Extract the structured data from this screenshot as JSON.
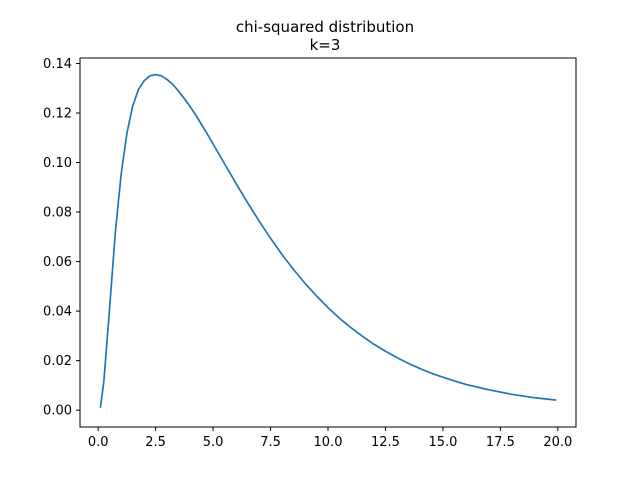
{
  "chart_data": {
    "type": "line",
    "title": "chi-squared distribution",
    "subtitle": "k=3",
    "xlabel": "",
    "ylabel": "",
    "xlim": [
      -0.79,
      20.79
    ],
    "ylim": [
      -0.0068,
      0.1422
    ],
    "grid": false,
    "x_ticks": [
      0.0,
      2.5,
      5.0,
      7.5,
      10.0,
      12.5,
      15.0,
      17.5,
      20.0
    ],
    "x_tick_labels": [
      "0.0",
      "2.5",
      "5.0",
      "7.5",
      "10.0",
      "12.5",
      "15.0",
      "17.5",
      "20.0"
    ],
    "y_ticks": [
      0.0,
      0.02,
      0.04,
      0.06,
      0.08,
      0.1,
      0.12,
      0.14
    ],
    "y_tick_labels": [
      "0.00",
      "0.02",
      "0.04",
      "0.06",
      "0.08",
      "0.10",
      "0.12",
      "0.14"
    ],
    "series": [
      {
        "color": "#1f77b4",
        "x": [
          0.1,
          0.25,
          0.5,
          0.75,
          1.0,
          1.25,
          1.5,
          1.75,
          2.0,
          2.25,
          2.5,
          2.75,
          3.0,
          3.25,
          3.5,
          3.75,
          4.0,
          4.25,
          4.5,
          4.75,
          5.0,
          5.5,
          6.0,
          6.5,
          7.0,
          7.5,
          8.0,
          8.5,
          9.0,
          9.5,
          10.0,
          10.5,
          11.0,
          11.5,
          12.0,
          12.5,
          13.0,
          13.5,
          14.0,
          14.5,
          15.0,
          15.5,
          16.0,
          16.5,
          17.0,
          17.5,
          18.0,
          18.5,
          19.0,
          19.5,
          19.9
        ],
        "y": [
          0.0012,
          0.0118,
          0.0415,
          0.0721,
          0.0952,
          0.1118,
          0.1227,
          0.1294,
          0.133,
          0.135,
          0.1355,
          0.135,
          0.1335,
          0.1315,
          0.1288,
          0.1258,
          0.1226,
          0.1191,
          0.1153,
          0.1115,
          0.1075,
          0.0995,
          0.0915,
          0.0838,
          0.0764,
          0.0694,
          0.0628,
          0.0568,
          0.0512,
          0.0461,
          0.0414,
          0.0371,
          0.0333,
          0.0298,
          0.0266,
          0.0238,
          0.0212,
          0.0189,
          0.0168,
          0.0149,
          0.0133,
          0.0118,
          0.0104,
          0.0093,
          0.0082,
          0.0073,
          0.0064,
          0.0057,
          0.005,
          0.0045,
          0.0041
        ]
      }
    ]
  }
}
